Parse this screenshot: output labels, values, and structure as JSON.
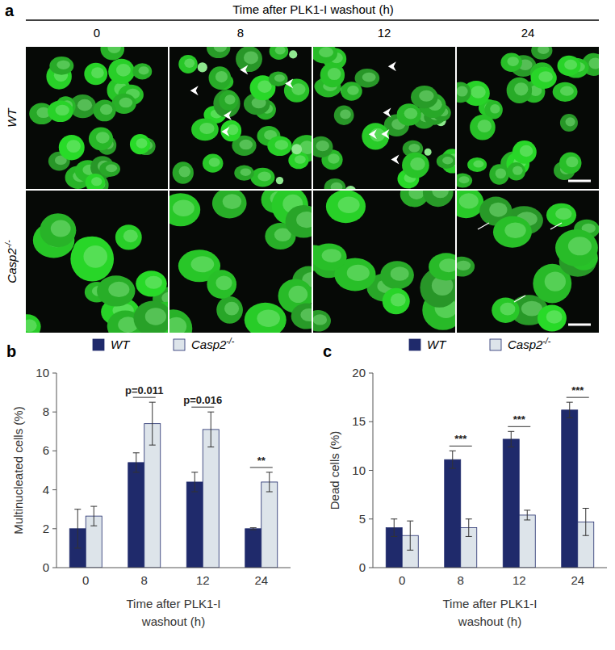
{
  "panel_a": {
    "letter": "a",
    "title": "Time after PLK1-I washout (h)",
    "columns": [
      "0",
      "8",
      "12",
      "24"
    ],
    "rows": [
      "WT",
      "Casp2-/-"
    ]
  },
  "chart_data": [
    {
      "type": "bar",
      "panel": "b",
      "y_label": "Multinucleated cells (%)",
      "x_label": [
        "Time after PLK1-I",
        "washout (h)"
      ],
      "categories": [
        "0",
        "8",
        "12",
        "24"
      ],
      "series": [
        {
          "name": "WT",
          "color": "#1f2a6b",
          "values": [
            2.0,
            5.4,
            4.4,
            2.0
          ],
          "errors": [
            1.0,
            0.5,
            0.5,
            0.05
          ]
        },
        {
          "name": "Casp2-/-",
          "color": "#dde4ea",
          "values": [
            2.65,
            7.4,
            7.1,
            4.4
          ],
          "errors": [
            0.5,
            1.1,
            0.9,
            0.5
          ]
        }
      ],
      "ylim": [
        0,
        10
      ],
      "yticks": [
        0,
        2,
        4,
        6,
        8,
        10
      ],
      "legend": "top",
      "annotations": [
        {
          "category": "8",
          "text": "p=0.011"
        },
        {
          "category": "12",
          "text": "p=0.016"
        },
        {
          "category": "24",
          "text": "**"
        }
      ]
    },
    {
      "type": "bar",
      "panel": "c",
      "y_label": "Dead cells (%)",
      "x_label": [
        "Time after PLK1-I",
        "washout (h)"
      ],
      "categories": [
        "0",
        "8",
        "12",
        "24"
      ],
      "series": [
        {
          "name": "WT",
          "color": "#1f2a6b",
          "values": [
            4.1,
            11.1,
            13.2,
            16.2
          ],
          "errors": [
            0.9,
            0.9,
            0.8,
            0.8
          ]
        },
        {
          "name": "Casp2-/-",
          "color": "#dde4ea",
          "values": [
            3.3,
            4.1,
            5.4,
            4.7
          ],
          "errors": [
            1.5,
            0.9,
            0.5,
            1.4
          ]
        }
      ],
      "ylim": [
        0,
        20
      ],
      "yticks": [
        0,
        5,
        10,
        15,
        20
      ],
      "legend": "top",
      "annotations": [
        {
          "category": "8",
          "text": "***"
        },
        {
          "category": "12",
          "text": "***"
        },
        {
          "category": "24",
          "text": "***"
        }
      ]
    }
  ]
}
